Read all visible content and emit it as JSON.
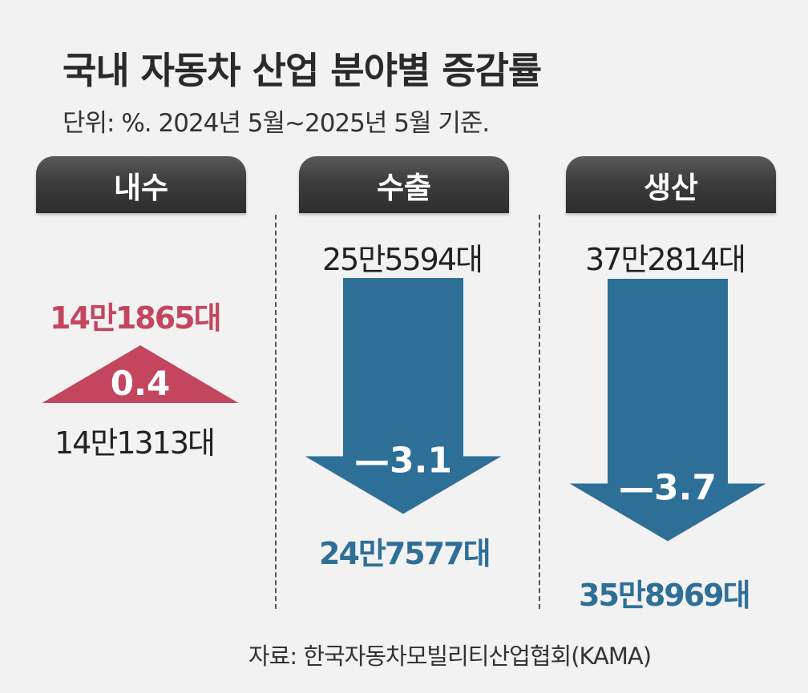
{
  "header": {
    "title": "국내 자동차 산업 분야별 증감률",
    "subtitle": "단위: %. 2024년 5월~2025년 5월 기준."
  },
  "chart_data": {
    "type": "arrow-change",
    "title": "국내 자동차 산업 분야별 증감률",
    "unit": "%",
    "period": "2024년 5월~2025년 5월",
    "series": [
      {
        "category": "내수",
        "before_label": "14만1313대",
        "after_label": "14만1865대",
        "before": 141313,
        "after": 141865,
        "change": 0.4,
        "change_label": "0.4",
        "direction": "up",
        "color": "#c4465e"
      },
      {
        "category": "수출",
        "before_label": "25만5594대",
        "after_label": "24만7577대",
        "before": 255594,
        "after": 247577,
        "change": -3.1,
        "change_label": "—3.1",
        "direction": "down",
        "color": "#2e6f98"
      },
      {
        "category": "생산",
        "before_label": "37만2814대",
        "after_label": "35만8969대",
        "before": 372814,
        "after": 358969,
        "change": -3.7,
        "change_label": "—3.7",
        "direction": "down",
        "color": "#2e6f98"
      }
    ]
  },
  "source": "자료: 한국자동차모빌리티산업협회(KAMA)"
}
